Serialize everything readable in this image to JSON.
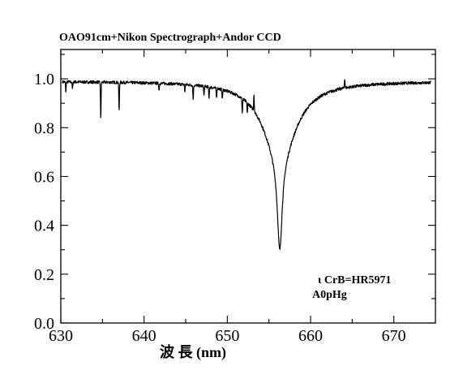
{
  "chart_data": {
    "type": "line",
    "title": "OAO91cm+Nikon Spectrograph+Andor CCD",
    "xlabel": "波 長 (nm)",
    "ylabel": "",
    "xlim": [
      630,
      675
    ],
    "ylim": [
      0.0,
      1.12
    ],
    "x_ticks": [
      630,
      640,
      650,
      660,
      670
    ],
    "x_tick_labels": [
      "630",
      "640",
      "650",
      "660",
      "670"
    ],
    "y_ticks": [
      0.0,
      0.2,
      0.4,
      0.6,
      0.8,
      1.0
    ],
    "y_tick_labels": [
      "0.0",
      "0.2",
      "0.4",
      "0.6",
      "0.8",
      "1.0"
    ],
    "grid": false,
    "annotations": [
      "ι CrB=HR5971",
      "A0pHg"
    ],
    "series": [
      {
        "color": "#000000",
        "continuum": 0.99,
        "x_start": 630.2,
        "x_end": 674.5,
        "absorption_lines": [
          {
            "x": 630.6,
            "depth": 0.04
          },
          {
            "x": 631.4,
            "depth": 0.03
          },
          {
            "x": 634.8,
            "depth": 0.15
          },
          {
            "x": 637.0,
            "depth": 0.12
          },
          {
            "x": 641.8,
            "depth": 0.03
          },
          {
            "x": 644.9,
            "depth": 0.03
          },
          {
            "x": 645.9,
            "depth": 0.06
          },
          {
            "x": 647.2,
            "depth": 0.04
          },
          {
            "x": 647.8,
            "depth": 0.05
          },
          {
            "x": 648.7,
            "depth": 0.04
          },
          {
            "x": 649.4,
            "depth": 0.04
          },
          {
            "x": 651.8,
            "depth": 0.06
          },
          {
            "x": 652.4,
            "depth": 0.04
          }
        ],
        "emission_spikes": [
          {
            "x": 653.2,
            "height": 0.07
          },
          {
            "x": 664.1,
            "height": 0.04
          }
        ],
        "broad_line": {
          "x": 656.3,
          "minimum": 0.3
        }
      }
    ]
  }
}
